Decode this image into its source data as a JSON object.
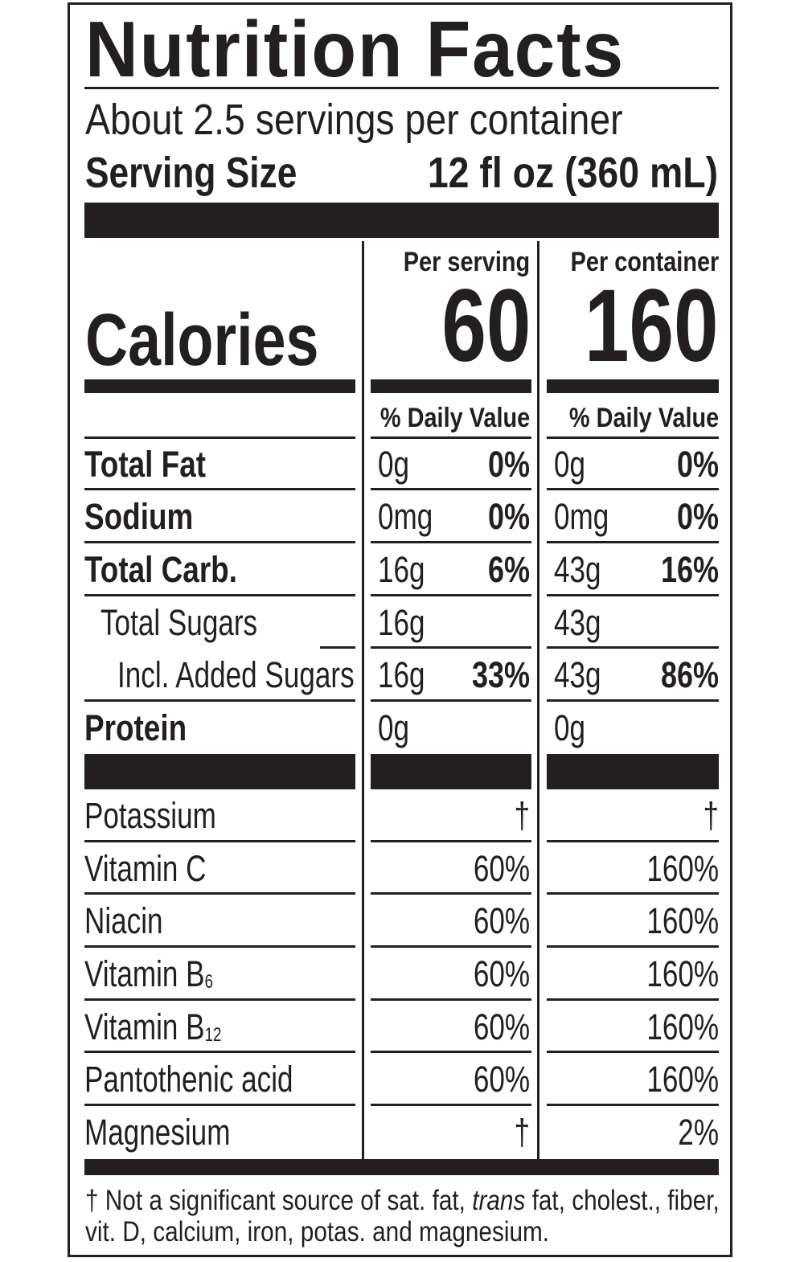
{
  "title": "Nutrition Facts",
  "servings_per_container": "About 2.5 servings per container",
  "serving_size_label": "Serving Size",
  "serving_size_value": "12 fl oz (360 mL)",
  "columns": {
    "per_serving": "Per serving",
    "per_container": "Per container",
    "daily_value_header": "% Daily Value"
  },
  "calories": {
    "label": "Calories",
    "per_serving": "60",
    "per_container": "160"
  },
  "nutrients": [
    {
      "name": "Total Fat",
      "serving_amount": "0g",
      "serving_dv": "0%",
      "container_amount": "0g",
      "container_dv": "0%"
    },
    {
      "name": "Sodium",
      "serving_amount": "0mg",
      "serving_dv": "0%",
      "container_amount": "0mg",
      "container_dv": "0%"
    },
    {
      "name": "Total Carb.",
      "serving_amount": "16g",
      "serving_dv": "6%",
      "container_amount": "43g",
      "container_dv": "16%"
    },
    {
      "name": "Total Sugars",
      "serving_amount": "16g",
      "serving_dv": "",
      "container_amount": "43g",
      "container_dv": ""
    },
    {
      "name": "Incl. Added Sugars",
      "serving_amount": "16g",
      "serving_dv": "33%",
      "container_amount": "43g",
      "container_dv": "86%"
    },
    {
      "name": "Protein",
      "serving_amount": "0g",
      "serving_dv": "",
      "container_amount": "0g",
      "container_dv": ""
    }
  ],
  "vitamins": [
    {
      "name": "Potassium",
      "subscript": "",
      "serving_dv": "†",
      "container_dv": "†"
    },
    {
      "name": "Vitamin C",
      "subscript": "",
      "serving_dv": "60%",
      "container_dv": "160%"
    },
    {
      "name": "Niacin",
      "subscript": "",
      "serving_dv": "60%",
      "container_dv": "160%"
    },
    {
      "name": "Vitamin B",
      "subscript": "6",
      "serving_dv": "60%",
      "container_dv": "160%"
    },
    {
      "name": "Vitamin B",
      "subscript": "12",
      "serving_dv": "60%",
      "container_dv": "160%"
    },
    {
      "name": "Pantothenic acid",
      "subscript": "",
      "serving_dv": "60%",
      "container_dv": "160%"
    },
    {
      "name": "Magnesium",
      "subscript": "",
      "serving_dv": "†",
      "container_dv": "2%"
    }
  ],
  "footnote": {
    "part1": "† Not a significant source of sat. fat, ",
    "italic": "trans",
    "part2": " fat, cholest., fiber,",
    "line2": "vit. D, calcium, iron, potas. and magnesium."
  }
}
